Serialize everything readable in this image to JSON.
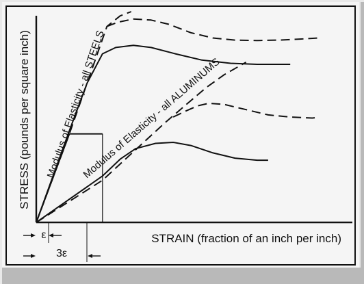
{
  "chart_data": {
    "type": "line",
    "title": "",
    "xlabel": "STRAIN  (fraction of an inch per inch)",
    "ylabel": "STRESS  (pounds per square inch)",
    "annotations": {
      "steels": "Modulus of Elasticity - all STEELS",
      "aluminums": "Modulus of Elasticity - all ALUMINUMS",
      "strain_1": "ε",
      "strain_3": "3ε"
    },
    "grid": false,
    "legend": "none",
    "units": {
      "x": "multiples of ε",
      "y": "relative stress"
    },
    "xlim": [
      0,
      14.5
    ],
    "ylim": [
      0,
      100
    ],
    "series": [
      {
        "style": "dashed",
        "points": [
          [
            0,
            0
          ],
          [
            1.5,
            42
          ],
          [
            3.2,
            93
          ],
          [
            3.8,
            98
          ],
          [
            4.3,
            100
          ]
        ]
      },
      {
        "style": "dashed",
        "points": [
          [
            3.2,
            93
          ],
          [
            3.7,
            95
          ],
          [
            4.4,
            96.5
          ],
          [
            5.2,
            96
          ],
          [
            6.0,
            94
          ],
          [
            7.0,
            90
          ],
          [
            8.0,
            87.5
          ],
          [
            9.0,
            86.5
          ],
          [
            10.0,
            86.3
          ],
          [
            11.0,
            86.5
          ],
          [
            12.0,
            87
          ],
          [
            12.8,
            87.5
          ]
        ]
      },
      {
        "style": "solid",
        "points": [
          [
            0,
            0
          ],
          [
            1.5,
            43.5
          ],
          [
            2.3,
            66
          ],
          [
            3.0,
            80
          ],
          [
            3.6,
            83
          ],
          [
            4.4,
            84
          ],
          [
            5.2,
            83
          ],
          [
            6.3,
            80
          ],
          [
            7.5,
            77
          ],
          [
            8.8,
            75.5
          ],
          [
            10.0,
            75
          ],
          [
            11.5,
            75
          ]
        ]
      },
      {
        "style": "dashed",
        "points": [
          [
            0,
            0
          ],
          [
            3.0,
            20
          ],
          [
            5.8,
            47
          ],
          [
            6.8,
            56
          ],
          [
            7.7,
            64
          ],
          [
            8.5,
            70
          ],
          [
            9.5,
            76
          ]
        ]
      },
      {
        "style": "dashed",
        "points": [
          [
            6.2,
            50
          ],
          [
            6.8,
            53
          ],
          [
            7.3,
            55.3
          ],
          [
            7.8,
            56.5
          ],
          [
            8.5,
            56
          ],
          [
            9.5,
            53.5
          ],
          [
            10.5,
            51
          ],
          [
            11.5,
            50
          ],
          [
            12.5,
            49.5
          ],
          [
            12.8,
            49.8
          ]
        ]
      },
      {
        "style": "solid",
        "points": [
          [
            0,
            0
          ],
          [
            1.5,
            11
          ],
          [
            3.0,
            22
          ],
          [
            3.8,
            30
          ],
          [
            4.5,
            35
          ],
          [
            5.4,
            37.5
          ],
          [
            6.2,
            38
          ],
          [
            7.0,
            36.5
          ],
          [
            8.0,
            33
          ],
          [
            9.0,
            30.5
          ],
          [
            10.0,
            29.5
          ],
          [
            10.5,
            29.5
          ]
        ]
      },
      {
        "style": "solid",
        "points": [
          [
            0,
            0
          ],
          [
            1.5,
            42
          ],
          [
            3.0,
            42
          ]
        ]
      }
    ]
  }
}
